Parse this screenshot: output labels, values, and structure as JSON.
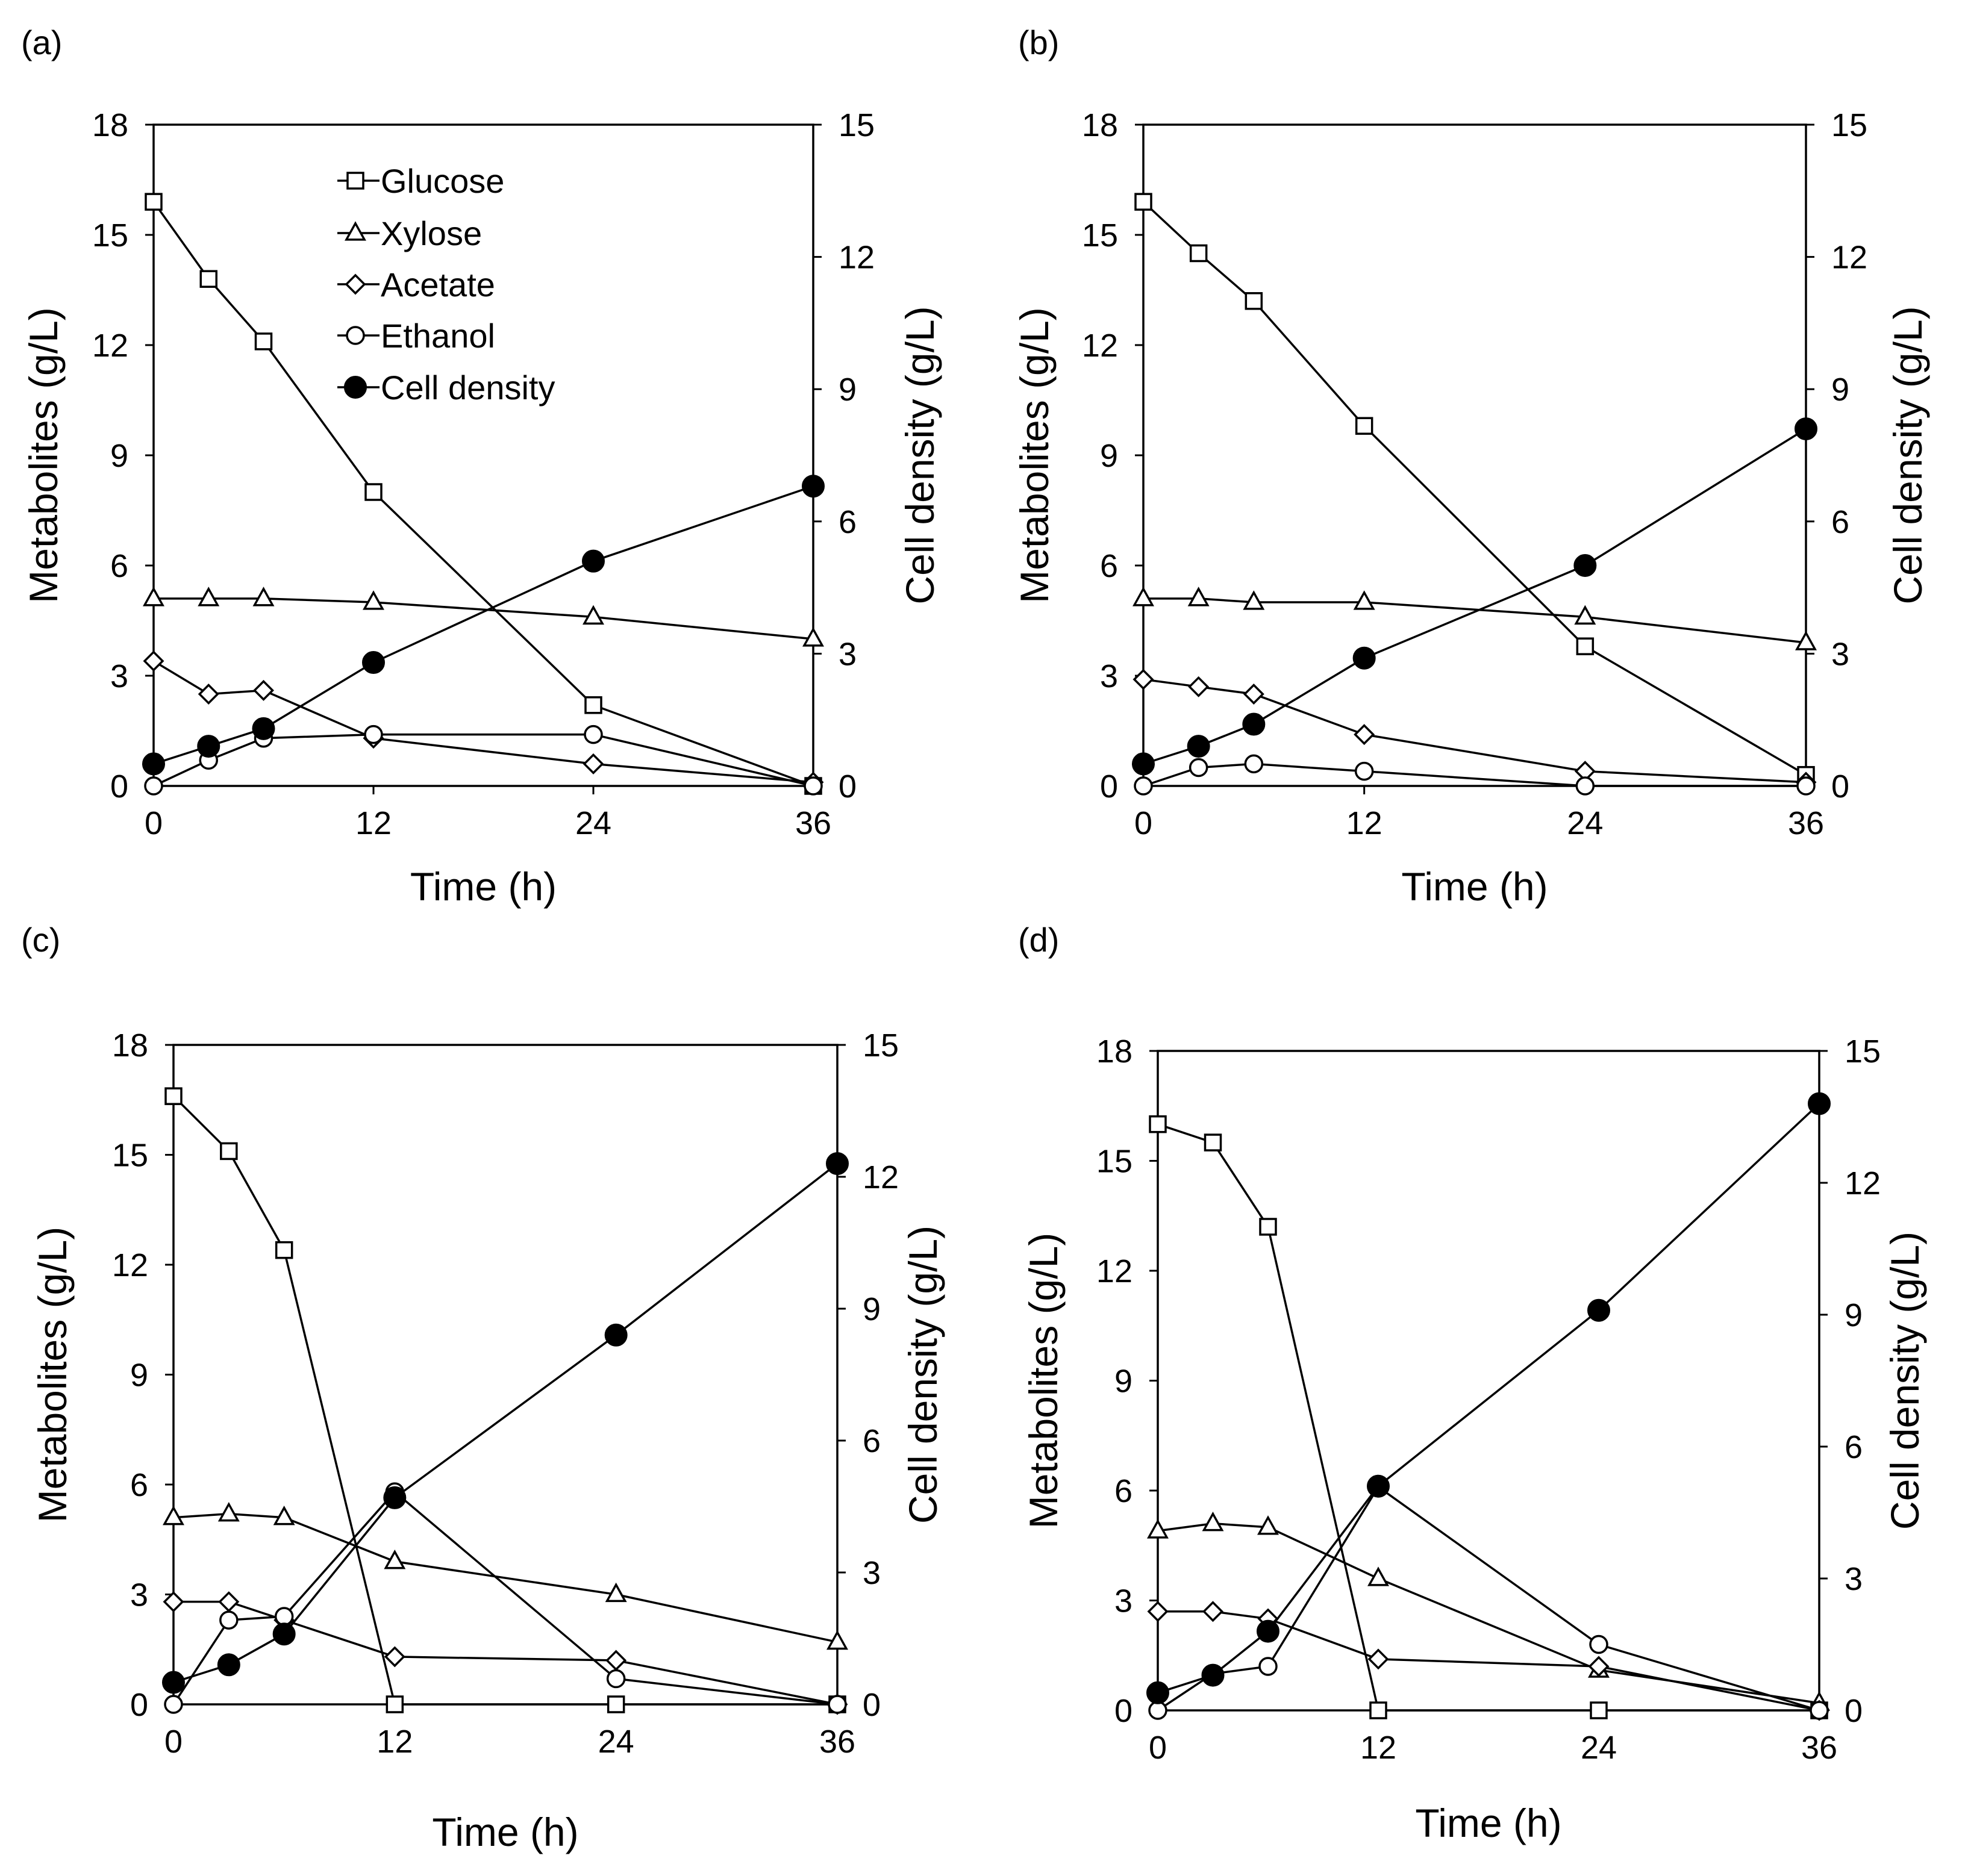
{
  "figure": {
    "colors": {
      "line": "#000000",
      "open_fill": "#ffffff",
      "filled": "#000000"
    },
    "legend": {
      "glucose": "Glucose",
      "xylose": "Xylose",
      "acetate": "Acetate",
      "ethanol": "Ethanol",
      "cell_density": "Cell density"
    }
  },
  "chart_data": [
    {
      "panel_label": "(a)",
      "type": "line",
      "xlabel": "Time (h)",
      "ylabel": "Metabolites (g/L)",
      "y2label": "Cell density (g/L)",
      "x": [
        0,
        3,
        6,
        12,
        24,
        36
      ],
      "x_ticks": [
        0,
        12,
        24,
        36
      ],
      "xlim": [
        0,
        36
      ],
      "ylim": [
        0,
        18
      ],
      "y_ticks": [
        0,
        3,
        6,
        9,
        12,
        15,
        18
      ],
      "y2lim": [
        0,
        15
      ],
      "y2_ticks": [
        0,
        3,
        6,
        9,
        12,
        15
      ],
      "series": [
        {
          "name": "Glucose",
          "marker": "square",
          "axis": "left",
          "values": [
            15.9,
            13.8,
            12.1,
            8.0,
            2.2,
            0.0
          ]
        },
        {
          "name": "Xylose",
          "marker": "triangle",
          "axis": "left",
          "values": [
            5.1,
            5.1,
            5.1,
            5.0,
            4.6,
            4.0
          ]
        },
        {
          "name": "Acetate",
          "marker": "diamond",
          "axis": "left",
          "values": [
            3.4,
            2.5,
            2.6,
            1.3,
            0.6,
            0.1
          ]
        },
        {
          "name": "Ethanol",
          "marker": "circle",
          "axis": "left",
          "values": [
            0.0,
            0.7,
            1.3,
            1.4,
            1.4,
            0.0
          ]
        },
        {
          "name": "Cell density",
          "marker": "filled-circle",
          "axis": "right",
          "values": [
            0.5,
            0.9,
            1.3,
            2.8,
            5.1,
            6.8
          ]
        }
      ]
    },
    {
      "panel_label": "(b)",
      "type": "line",
      "xlabel": "Time (h)",
      "ylabel": "Metabolites (g/L)",
      "y2label": "Cell density (g/L)",
      "x": [
        0,
        3,
        6,
        12,
        24,
        36
      ],
      "x_ticks": [
        0,
        12,
        24,
        36
      ],
      "xlim": [
        0,
        36
      ],
      "ylim": [
        0,
        18
      ],
      "y_ticks": [
        0,
        3,
        6,
        9,
        12,
        15,
        18
      ],
      "y2lim": [
        0,
        15
      ],
      "y2_ticks": [
        0,
        3,
        6,
        9,
        12,
        15
      ],
      "series": [
        {
          "name": "Glucose",
          "marker": "square",
          "axis": "left",
          "values": [
            15.9,
            14.5,
            13.2,
            9.8,
            3.8,
            0.3
          ]
        },
        {
          "name": "Xylose",
          "marker": "triangle",
          "axis": "left",
          "values": [
            5.1,
            5.1,
            5.0,
            5.0,
            4.6,
            3.9
          ]
        },
        {
          "name": "Acetate",
          "marker": "diamond",
          "axis": "left",
          "values": [
            2.9,
            2.7,
            2.5,
            1.4,
            0.4,
            0.1
          ]
        },
        {
          "name": "Ethanol",
          "marker": "circle",
          "axis": "left",
          "values": [
            0.0,
            0.5,
            0.6,
            0.4,
            0.0,
            0.0
          ]
        },
        {
          "name": "Cell density",
          "marker": "filled-circle",
          "axis": "right",
          "values": [
            0.5,
            0.9,
            1.4,
            2.9,
            5.0,
            8.1
          ]
        }
      ]
    },
    {
      "panel_label": "(c)",
      "type": "line",
      "xlabel": "Time (h)",
      "ylabel": "Metabolites (g/L)",
      "y2label": "Cell density (g/L)",
      "x": [
        0,
        3,
        6,
        12,
        24,
        36
      ],
      "x_ticks": [
        0,
        12,
        24,
        36
      ],
      "xlim": [
        0,
        36
      ],
      "ylim": [
        0,
        18
      ],
      "y_ticks": [
        0,
        3,
        6,
        9,
        12,
        15,
        18
      ],
      "y2lim": [
        0,
        15
      ],
      "y2_ticks": [
        0,
        3,
        6,
        9,
        12,
        15
      ],
      "series": [
        {
          "name": "Glucose",
          "marker": "square",
          "axis": "left",
          "values": [
            16.6,
            15.1,
            12.4,
            0.0,
            0.0,
            0.0
          ]
        },
        {
          "name": "Xylose",
          "marker": "triangle",
          "axis": "left",
          "values": [
            5.1,
            5.2,
            5.1,
            3.9,
            3.0,
            1.7
          ]
        },
        {
          "name": "Acetate",
          "marker": "diamond",
          "axis": "left",
          "values": [
            2.8,
            2.8,
            2.3,
            1.3,
            1.2,
            0.0
          ]
        },
        {
          "name": "Ethanol",
          "marker": "circle",
          "axis": "left",
          "values": [
            0.0,
            2.3,
            2.4,
            5.8,
            0.7,
            0.0
          ]
        },
        {
          "name": "Cell density",
          "marker": "filled-circle",
          "axis": "right",
          "values": [
            0.5,
            0.9,
            1.6,
            4.7,
            8.4,
            12.3
          ]
        }
      ]
    },
    {
      "panel_label": "(d)",
      "type": "line",
      "xlabel": "Time (h)",
      "ylabel": "Metabolites (g/L)",
      "y2label": "Cell density (g/L)",
      "x": [
        0,
        3,
        6,
        12,
        24,
        36
      ],
      "x_ticks": [
        0,
        12,
        24,
        36
      ],
      "xlim": [
        0,
        36
      ],
      "ylim": [
        0,
        18
      ],
      "y_ticks": [
        0,
        3,
        6,
        9,
        12,
        15,
        18
      ],
      "y2lim": [
        0,
        15
      ],
      "y2_ticks": [
        0,
        3,
        6,
        9,
        12,
        15
      ],
      "series": [
        {
          "name": "Glucose",
          "marker": "square",
          "axis": "left",
          "values": [
            16.0,
            15.5,
            13.2,
            0.0,
            0.0,
            0.0
          ]
        },
        {
          "name": "Xylose",
          "marker": "triangle",
          "axis": "left",
          "values": [
            4.9,
            5.1,
            5.0,
            3.6,
            1.1,
            0.2
          ]
        },
        {
          "name": "Acetate",
          "marker": "diamond",
          "axis": "left",
          "values": [
            2.7,
            2.7,
            2.5,
            1.4,
            1.2,
            0.0
          ]
        },
        {
          "name": "Ethanol",
          "marker": "circle",
          "axis": "left",
          "values": [
            0.0,
            1.0,
            1.2,
            6.1,
            1.8,
            0.0
          ]
        },
        {
          "name": "Cell density",
          "marker": "filled-circle",
          "axis": "right",
          "values": [
            0.4,
            0.8,
            1.8,
            5.1,
            9.1,
            13.8
          ]
        }
      ]
    }
  ]
}
